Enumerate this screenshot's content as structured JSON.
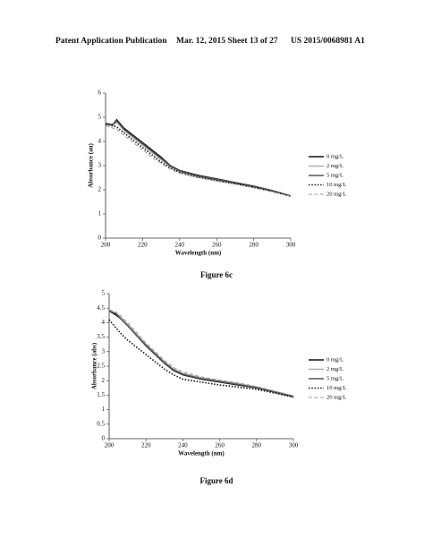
{
  "header": {
    "left": "Patent Application Publication",
    "center": "Mar. 12, 2015  Sheet 13 of 27",
    "right": "US 2015/0068981 A1"
  },
  "chart_data": [
    {
      "type": "line",
      "caption": "Figure 6c",
      "x_label": "Wavelength (nm)",
      "y_label": "Absorbance (au)",
      "x": [
        200,
        204,
        206,
        210,
        215,
        220,
        225,
        230,
        235,
        240,
        250,
        260,
        270,
        280,
        290,
        300
      ],
      "xlim": [
        200,
        300
      ],
      "xticks": [
        200,
        220,
        240,
        260,
        280,
        300
      ],
      "ylim": [
        0,
        6
      ],
      "yticks": [
        0,
        1,
        2,
        3,
        4,
        5,
        6
      ],
      "grid": false,
      "series": [
        {
          "name": "0 mg/L",
          "color": "#111111",
          "style": "solid",
          "values": [
            4.7,
            4.7,
            4.9,
            4.55,
            4.25,
            3.95,
            3.65,
            3.35,
            3.0,
            2.8,
            2.6,
            2.45,
            2.3,
            2.15,
            1.97,
            1.75
          ]
        },
        {
          "name": "2 mg/L",
          "color": "#b0b0b0",
          "style": "solid",
          "values": [
            4.7,
            4.65,
            4.8,
            4.45,
            4.15,
            3.85,
            3.55,
            3.25,
            2.95,
            2.75,
            2.55,
            2.4,
            2.27,
            2.12,
            1.95,
            1.75
          ]
        },
        {
          "name": "5 mg/L",
          "color": "#555555",
          "style": "solid",
          "values": [
            4.75,
            4.7,
            4.85,
            4.5,
            4.2,
            3.9,
            3.6,
            3.3,
            2.98,
            2.78,
            2.57,
            2.43,
            2.28,
            2.13,
            1.96,
            1.75
          ]
        },
        {
          "name": "10 mg/L",
          "color": "#111111",
          "style": "dotted",
          "values": [
            4.7,
            4.65,
            4.6,
            4.35,
            4.05,
            3.75,
            3.45,
            3.15,
            2.9,
            2.72,
            2.52,
            2.38,
            2.25,
            2.1,
            1.93,
            1.73
          ]
        },
        {
          "name": "20 mg/L",
          "color": "#999999",
          "style": "dashed",
          "values": [
            4.65,
            4.55,
            4.5,
            4.25,
            3.95,
            3.65,
            3.35,
            3.1,
            2.85,
            2.68,
            2.5,
            2.36,
            2.23,
            2.08,
            1.92,
            1.73
          ]
        }
      ]
    },
    {
      "type": "line",
      "caption": "Figure 6d",
      "x_label": "Wavelength (nm)",
      "y_label": "Absorbance (abs)",
      "x": [
        200,
        204,
        206,
        210,
        215,
        220,
        225,
        230,
        235,
        240,
        250,
        260,
        270,
        280,
        290,
        300
      ],
      "xlim": [
        200,
        300
      ],
      "xticks": [
        200,
        220,
        240,
        260,
        280,
        300
      ],
      "ylim": [
        0,
        5
      ],
      "yticks": [
        0,
        0.5,
        1,
        1.5,
        2,
        2.5,
        3,
        3.5,
        4,
        4.5,
        5
      ],
      "grid": false,
      "series": [
        {
          "name": "0 mg/L",
          "color": "#111111",
          "style": "solid",
          "values": [
            4.4,
            4.25,
            4.15,
            3.9,
            3.55,
            3.2,
            2.9,
            2.6,
            2.35,
            2.2,
            2.05,
            1.95,
            1.85,
            1.75,
            1.6,
            1.45
          ]
        },
        {
          "name": "2 mg/L",
          "color": "#b0b0b0",
          "style": "solid",
          "values": [
            4.45,
            4.3,
            4.2,
            3.95,
            3.6,
            3.25,
            2.95,
            2.65,
            2.4,
            2.25,
            2.1,
            2.0,
            1.9,
            1.78,
            1.62,
            1.47
          ]
        },
        {
          "name": "5 mg/L",
          "color": "#555555",
          "style": "solid",
          "values": [
            4.4,
            4.3,
            4.15,
            3.9,
            3.55,
            3.22,
            2.92,
            2.62,
            2.37,
            2.22,
            2.07,
            1.97,
            1.87,
            1.76,
            1.61,
            1.46
          ]
        },
        {
          "name": "10 mg/L",
          "color": "#111111",
          "style": "dotted",
          "values": [
            4.1,
            3.8,
            3.65,
            3.4,
            3.15,
            2.9,
            2.65,
            2.4,
            2.2,
            2.05,
            1.95,
            1.85,
            1.78,
            1.7,
            1.57,
            1.43
          ]
        },
        {
          "name": "20 mg/L",
          "color": "#999999",
          "style": "dashed",
          "values": [
            4.45,
            4.35,
            4.25,
            4.0,
            3.65,
            3.3,
            3.0,
            2.7,
            2.45,
            2.3,
            2.13,
            2.02,
            1.92,
            1.8,
            1.64,
            1.48
          ]
        }
      ]
    }
  ]
}
